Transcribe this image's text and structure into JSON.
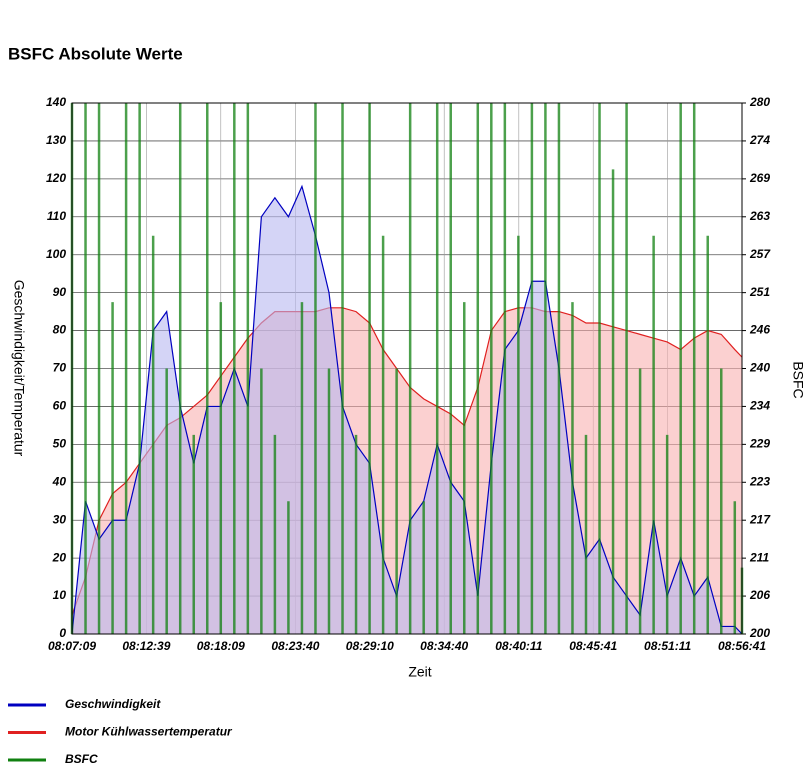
{
  "chart_data": {
    "type": "line",
    "title": "BSFC Absolute Werte",
    "x_label": "Zeit",
    "y_label": "Geschwindigkeit/Temperatur",
    "y2_label": "BSFC",
    "x": [
      "08:07:09",
      "08:08:09",
      "08:09:09",
      "08:10:09",
      "08:11:09",
      "08:12:09",
      "08:13:09",
      "08:14:09",
      "08:15:09",
      "08:16:09",
      "08:17:09",
      "08:18:09",
      "08:19:09",
      "08:20:09",
      "08:21:09",
      "08:22:09",
      "08:23:09",
      "08:24:09",
      "08:25:09",
      "08:26:09",
      "08:27:09",
      "08:28:09",
      "08:29:09",
      "08:30:09",
      "08:31:09",
      "08:32:09",
      "08:33:09",
      "08:34:09",
      "08:35:09",
      "08:36:09",
      "08:37:09",
      "08:38:09",
      "08:39:09",
      "08:40:09",
      "08:41:09",
      "08:42:09",
      "08:43:09",
      "08:44:09",
      "08:45:09",
      "08:46:09",
      "08:47:09",
      "08:48:09",
      "08:49:09",
      "08:50:09",
      "08:51:09",
      "08:52:09",
      "08:53:09",
      "08:54:09",
      "08:55:09",
      "08:56:09",
      "08:56:41"
    ],
    "xlim": [
      "08:07:09",
      "08:56:41"
    ],
    "xticks": [
      "08:07:09",
      "08:12:39",
      "08:18:09",
      "08:23:40",
      "08:29:10",
      "08:34:40",
      "08:40:11",
      "08:45:41",
      "08:51:11",
      "08:56:41"
    ],
    "ylim": [
      0,
      140
    ],
    "yticks": [
      0,
      10,
      20,
      30,
      40,
      50,
      60,
      70,
      80,
      90,
      100,
      110,
      120,
      130,
      140
    ],
    "y2lim": [
      200,
      280
    ],
    "y2ticks": [
      200,
      {
        "value": 205.714,
        "label": "206"
      },
      {
        "value": 211.429,
        "label": "211"
      },
      {
        "value": 217.143,
        "label": "217"
      },
      {
        "value": 222.857,
        "label": "223"
      },
      {
        "value": 228.571,
        "label": "229"
      },
      {
        "value": 234.286,
        "label": "234"
      },
      240,
      {
        "value": 245.714,
        "label": "246"
      },
      {
        "value": 251.429,
        "label": "251"
      },
      {
        "value": 257.143,
        "label": "257"
      },
      {
        "value": 262.857,
        "label": "263"
      },
      {
        "value": 268.571,
        "label": "269"
      },
      {
        "value": 274.286,
        "label": "274"
      },
      280
    ],
    "grid": true,
    "series": [
      {
        "name": "Geschwindigkeit",
        "color": "#0000c0",
        "fill": "#b8b8f0",
        "values": [
          0,
          35,
          25,
          30,
          30,
          45,
          80,
          85,
          60,
          45,
          60,
          60,
          70,
          60,
          110,
          115,
          110,
          118,
          105,
          90,
          60,
          50,
          45,
          20,
          10,
          30,
          35,
          50,
          40,
          35,
          10,
          45,
          75,
          80,
          93,
          93,
          70,
          40,
          20,
          25,
          15,
          10,
          5,
          30,
          10,
          20,
          10,
          15,
          2,
          2,
          0
        ]
      },
      {
        "name": "Motor Kühlwassertemperatur",
        "color": "#e02020",
        "fill": "#f8b0b0",
        "values": [
          5,
          15,
          30,
          37,
          40,
          45,
          50,
          55,
          57,
          60,
          63,
          68,
          73,
          78,
          82,
          85,
          85,
          85,
          85,
          86,
          86,
          85,
          82,
          75,
          70,
          65,
          62,
          60,
          58,
          55,
          65,
          80,
          85,
          86,
          86,
          85,
          85,
          84,
          82,
          82,
          81,
          80,
          79,
          78,
          77,
          75,
          78,
          80,
          79,
          75,
          73
        ]
      },
      {
        "name": "BSFC",
        "color": "#108010",
        "axis": "y2",
        "values": [
          280,
          280,
          280,
          250,
          280,
          280,
          260,
          240,
          280,
          230,
          280,
          250,
          280,
          280,
          240,
          230,
          220,
          250,
          280,
          240,
          280,
          230,
          280,
          260,
          240,
          280,
          220,
          280,
          280,
          250,
          280,
          280,
          280,
          260,
          280,
          280,
          280,
          250,
          230,
          280,
          270,
          280,
          240,
          260,
          230,
          280,
          280,
          260,
          240,
          220,
          210
        ]
      }
    ]
  }
}
